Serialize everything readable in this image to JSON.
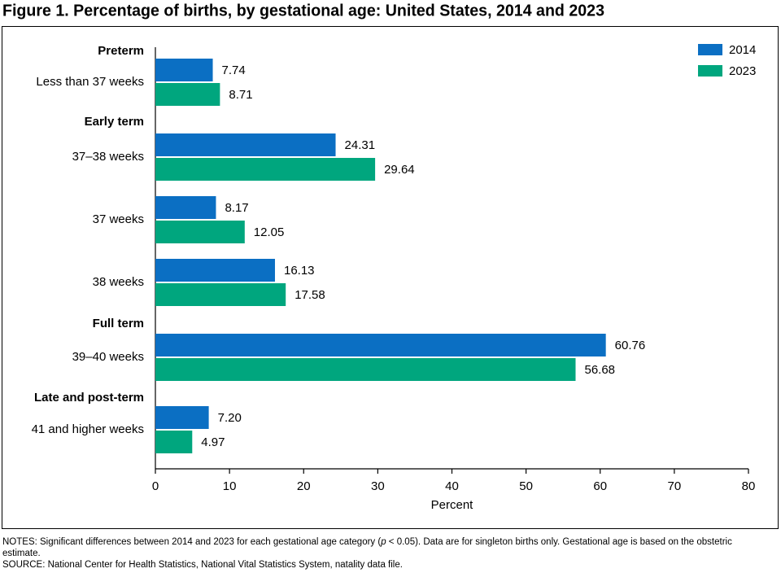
{
  "chart_data": {
    "type": "hbar",
    "title": "Figure 1. Percentage of births, by gestational age: United States, 2014 and 2023",
    "groups": [
      "Preterm",
      "Early term",
      "Full term",
      "Late and post-term"
    ],
    "categories": [
      "Less than 37 weeks",
      "37–38 weeks",
      "37 weeks",
      "38 weeks",
      "39–40 weeks",
      "41 and higher weeks"
    ],
    "series": [
      {
        "name": "2014",
        "color": "#0b6fc3",
        "values": [
          7.74,
          24.31,
          8.17,
          16.13,
          60.76,
          7.2
        ],
        "value_labels": [
          "7.74",
          "24.31",
          "8.17",
          "16.13",
          "60.76",
          "7.20"
        ]
      },
      {
        "name": "2023",
        "color": "#00a67e",
        "values": [
          8.71,
          29.64,
          12.05,
          17.58,
          56.68,
          4.97
        ],
        "value_labels": [
          "8.71",
          "29.64",
          "12.05",
          "17.58",
          "56.68",
          "4.97"
        ]
      }
    ],
    "xlabel": "Percent",
    "xlim": [
      0,
      80
    ],
    "xticks": [
      0,
      10,
      20,
      30,
      40,
      50,
      60,
      70,
      80
    ],
    "legend": "top-right"
  },
  "notes": [
    "NOTES: Significant differences between 2014 and 2023 for each gestational age category (",
    "p",
    " < 0.05). Data are for singleton births only. Gestational age is based on the obstetric estimate."
  ],
  "source": "SOURCE: National Center for Health Statistics, National Vital Statistics System, natality data file."
}
